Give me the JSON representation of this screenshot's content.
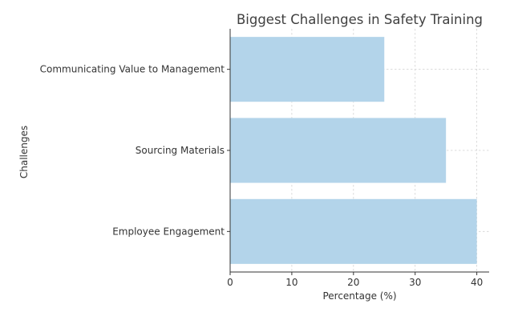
{
  "chart_data": {
    "type": "bar",
    "orientation": "horizontal",
    "title": "Biggest Challenges in Safety Training",
    "xlabel": "Percentage (%)",
    "ylabel": "Challenges",
    "categories": [
      "Employee Engagement",
      "Sourcing Materials",
      "Communicating Value to Management"
    ],
    "values": [
      40,
      35,
      25
    ],
    "xlim": [
      0,
      42
    ],
    "xticks": [
      0,
      10,
      20,
      30,
      40
    ],
    "grid": true,
    "bar_color": "#b3d4ea"
  }
}
